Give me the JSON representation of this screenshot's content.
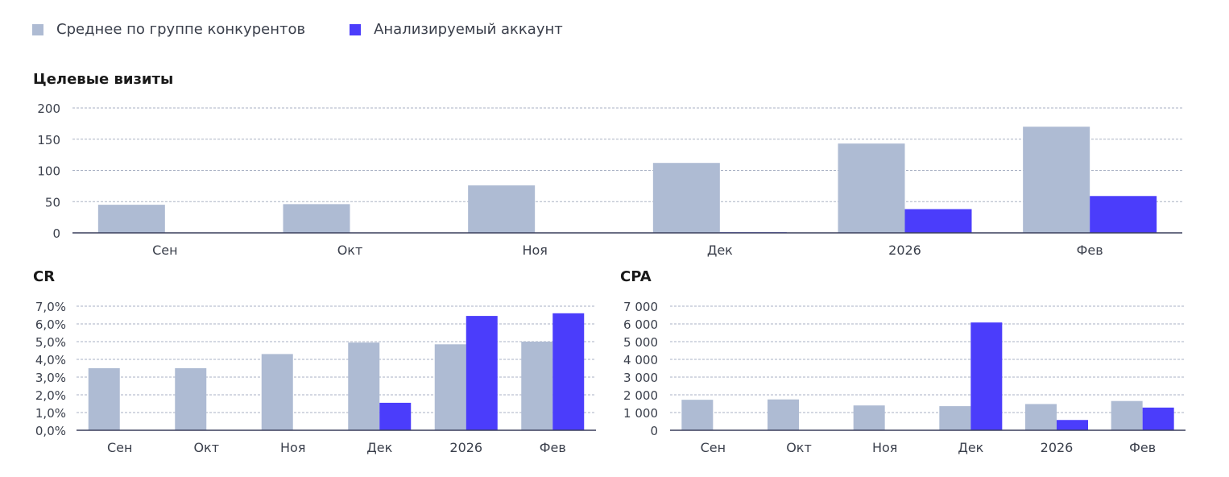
{
  "legend": {
    "items": [
      {
        "label": "Среднее по группе конкурентов",
        "color": "#aebbd3"
      },
      {
        "label": "Анализируемый аккаунт",
        "color": "#4b3dfb"
      }
    ]
  },
  "chart_data": [
    {
      "type": "bar",
      "title": "Целевые визиты",
      "categories": [
        "Сен",
        "Окт",
        "Ноя",
        "Дек",
        "2026",
        "Фев"
      ],
      "ylim": [
        0,
        200
      ],
      "yticks": [
        0,
        50,
        100,
        150,
        200
      ],
      "ytick_labels": [
        "0",
        "50",
        "100",
        "150",
        "200"
      ],
      "grid": true,
      "series": [
        {
          "name": "Среднее по группе конкурентов",
          "color": "#aebbd3",
          "values": [
            45,
            46,
            76,
            112,
            143,
            170
          ]
        },
        {
          "name": "Анализируемый аккаунт",
          "color": "#4b3dfb",
          "values": [
            0,
            0,
            0,
            1,
            38,
            59
          ]
        }
      ]
    },
    {
      "type": "bar",
      "title": "CR",
      "categories": [
        "Сен",
        "Окт",
        "Ноя",
        "Дек",
        "2026",
        "Фев"
      ],
      "ylim": [
        0,
        7
      ],
      "yticks": [
        0,
        1,
        2,
        3,
        4,
        5,
        6,
        7
      ],
      "ytick_labels": [
        "0,0%",
        "1,0%",
        "2,0%",
        "3,0%",
        "4,0%",
        "5,0%",
        "6,0%",
        "7,0%"
      ],
      "grid": true,
      "series": [
        {
          "name": "Среднее по группе конкурентов",
          "color": "#aebbd3",
          "values": [
            3.5,
            3.5,
            4.3,
            4.95,
            4.85,
            5.0
          ]
        },
        {
          "name": "Анализируемый аккаунт",
          "color": "#4b3dfb",
          "values": [
            0,
            0,
            0,
            1.55,
            6.45,
            6.6
          ]
        }
      ]
    },
    {
      "type": "bar",
      "title": "CPA",
      "categories": [
        "Сен",
        "Окт",
        "Ноя",
        "Дек",
        "2026",
        "Фев"
      ],
      "ylim": [
        0,
        7000
      ],
      "yticks": [
        0,
        1000,
        2000,
        3000,
        4000,
        5000,
        6000,
        7000
      ],
      "ytick_labels": [
        "0",
        "1 000",
        "2 000",
        "3 000",
        "4 000",
        "5 000",
        "6 000",
        "7 000"
      ],
      "grid": true,
      "series": [
        {
          "name": "Среднее по группе конкурентов",
          "color": "#aebbd3",
          "values": [
            1720,
            1740,
            1400,
            1360,
            1480,
            1650
          ]
        },
        {
          "name": "Анализируемый аккаунт",
          "color": "#4b3dfb",
          "values": [
            0,
            0,
            0,
            6080,
            580,
            1280
          ]
        }
      ]
    }
  ]
}
